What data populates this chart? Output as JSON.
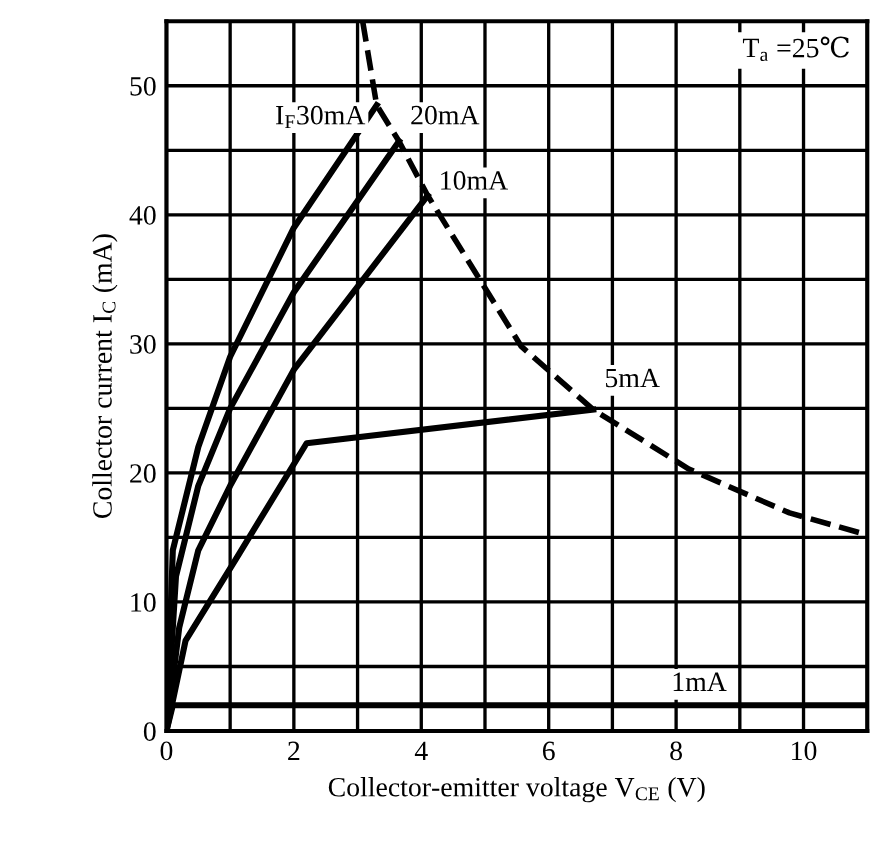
{
  "chart_data": {
    "type": "line",
    "xlabel": "Collector-emitter voltage V$_{CE}$ (V)",
    "ylabel": "Collector current I$_{C}$ (mA)",
    "xlim": [
      0,
      11
    ],
    "ylim": [
      0,
      55
    ],
    "xticks": [
      0,
      {
        "value": 1,
        "label": null
      },
      2,
      {
        "value": 3,
        "label": null
      },
      4,
      {
        "value": 5,
        "label": null
      },
      6,
      {
        "value": 7,
        "label": null
      },
      8,
      {
        "value": 9,
        "label": null
      },
      10
    ],
    "yticks": [
      0,
      {
        "value": 5,
        "label": null
      },
      10,
      {
        "value": 15,
        "label": null
      },
      20,
      {
        "value": 25,
        "label": null
      },
      30,
      {
        "value": 35,
        "label": null
      },
      40,
      {
        "value": 45,
        "label": null
      },
      50
    ],
    "grid": true,
    "legend": false,
    "marker": "none",
    "annotations": [
      "T$_{a}$ =25℃"
    ],
    "series": [
      {
        "name": "I$_{F}$30mA",
        "color": "#000000",
        "x": [
          0,
          0.1,
          0.5,
          1,
          2,
          3.3
        ],
        "values": [
          0,
          14,
          22,
          29,
          39,
          48.5
        ]
      },
      {
        "name": "20mA",
        "color": "#000000",
        "x": [
          0,
          0.15,
          0.5,
          1,
          2,
          3.65
        ],
        "values": [
          0,
          12,
          19,
          25,
          34,
          45.7
        ]
      },
      {
        "name": "10mA",
        "color": "#000000",
        "x": [
          0,
          0.2,
          0.5,
          1,
          2,
          4.1
        ],
        "values": [
          0,
          8,
          14,
          19,
          28,
          41.5
        ]
      },
      {
        "name": "5mA",
        "color": "#000000",
        "x": [
          0,
          0.3,
          1.1,
          2.2,
          6.7
        ],
        "values": [
          0,
          7,
          13.4,
          22.3,
          24.9
        ]
      },
      {
        "name": "1mA",
        "color": "#000000",
        "x": [
          0,
          0.1,
          11
        ],
        "values": [
          0,
          2,
          2
        ]
      },
      {
        "color": "#000000",
        "line_style": "dashed",
        "x": [
          3.08,
          3.3,
          3.65,
          4.1,
          5.57,
          6.7,
          8.2,
          9.78,
          11
        ],
        "values": [
          55,
          48.5,
          45.7,
          41.5,
          29.8,
          24.9,
          20.3,
          16.9,
          15.2
        ]
      }
    ]
  }
}
